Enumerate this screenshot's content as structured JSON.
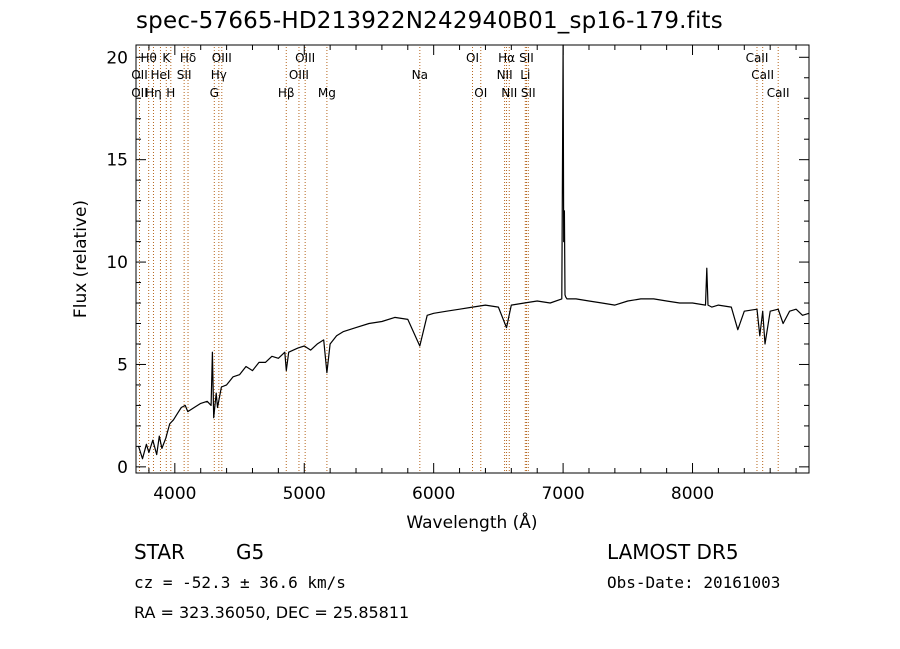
{
  "title": "spec-57665-HD213922N242940B01_sp16-179.fits",
  "info": {
    "object_class": "STAR",
    "subclass": "G5",
    "survey": "LAMOST DR5",
    "cz_line": "cz = -52.3 ± 36.6 km/s",
    "obs_date_line": "Obs-Date: 20161003",
    "coords_line": "RA = 323.36050, DEC =  25.85811"
  },
  "chart_data": {
    "type": "line",
    "title": "spec-57665-HD213922N242940B01_sp16-179.fits",
    "xlabel": "Wavelength (Å)",
    "ylabel": "Flux (relative)",
    "xlim": [
      3700,
      8900
    ],
    "ylim": [
      -0.3,
      20.6
    ],
    "x_ticks": [
      4000,
      5000,
      6000,
      7000,
      8000
    ],
    "y_ticks": [
      0,
      5,
      10,
      15,
      20
    ],
    "grid": false,
    "line_color": "#000000",
    "marker_color": "#b5651d",
    "series": [
      {
        "x": [
          3720,
          3750,
          3780,
          3800,
          3830,
          3860,
          3880,
          3900,
          3930,
          3960,
          3990,
          4020,
          4050,
          4080,
          4100,
          4150,
          4200,
          4250,
          4280,
          4290,
          4300,
          4320,
          4330,
          4360,
          4400,
          4450,
          4500,
          4550,
          4600,
          4650,
          4700,
          4750,
          4800,
          4850,
          4861,
          4880,
          4950,
          5000,
          5050,
          5100,
          5150,
          5175,
          5200,
          5250,
          5300,
          5400,
          5500,
          5600,
          5700,
          5800,
          5893,
          5950,
          6000,
          6100,
          6200,
          6300,
          6400,
          6500,
          6563,
          6600,
          6700,
          6800,
          6900,
          6990,
          7000,
          7005,
          7010,
          7015,
          7020,
          7030,
          7100,
          7200,
          7300,
          7400,
          7500,
          7600,
          7700,
          7800,
          7900,
          8000,
          8100,
          8110,
          8120,
          8150,
          8200,
          8300,
          8350,
          8400,
          8498,
          8520,
          8542,
          8560,
          8600,
          8662,
          8700,
          8750,
          8800,
          8850,
          8900
        ],
        "y": [
          1.0,
          0.4,
          1.1,
          0.7,
          1.3,
          0.6,
          1.5,
          0.9,
          1.4,
          2.1,
          2.3,
          2.6,
          2.9,
          3.0,
          2.7,
          2.9,
          3.1,
          3.2,
          3.0,
          5.6,
          2.4,
          3.6,
          2.9,
          3.9,
          4.0,
          4.4,
          4.5,
          4.9,
          4.7,
          5.1,
          5.1,
          5.4,
          5.3,
          5.6,
          4.7,
          5.6,
          5.8,
          5.9,
          5.7,
          6.0,
          6.2,
          4.6,
          6.0,
          6.4,
          6.6,
          6.8,
          7.0,
          7.1,
          7.3,
          7.2,
          5.9,
          7.4,
          7.5,
          7.6,
          7.7,
          7.8,
          7.9,
          7.8,
          6.8,
          7.9,
          8.0,
          8.1,
          8.0,
          8.2,
          20.6,
          11.0,
          12.5,
          8.4,
          8.3,
          8.2,
          8.2,
          8.1,
          8.0,
          7.9,
          8.1,
          8.2,
          8.2,
          8.1,
          8.0,
          8.0,
          7.9,
          9.7,
          7.9,
          7.8,
          7.9,
          7.8,
          6.7,
          7.6,
          7.7,
          6.4,
          7.6,
          6.0,
          7.6,
          7.7,
          7.0,
          7.6,
          7.7,
          7.4,
          7.5
        ]
      }
    ],
    "lines": [
      {
        "label": "Hθ",
        "x": 3798,
        "row": 0
      },
      {
        "label": "K",
        "x": 3934,
        "row": 0
      },
      {
        "label": "Hδ",
        "x": 4102,
        "row": 0
      },
      {
        "label": "OIII",
        "x": 4363,
        "row": 0
      },
      {
        "label": "OIII",
        "x": 5007,
        "row": 0
      },
      {
        "label": "OI",
        "x": 6300,
        "row": 0
      },
      {
        "label": "Hα",
        "x": 6563,
        "row": 0
      },
      {
        "label": "SII",
        "x": 6717,
        "row": 0
      },
      {
        "label": "CaII",
        "x": 8498,
        "row": 0
      },
      {
        "label": "OII",
        "x": 3727,
        "row": 1
      },
      {
        "label": "HeI",
        "x": 3889,
        "row": 1
      },
      {
        "label": "SII",
        "x": 4072,
        "row": 1
      },
      {
        "label": "Hγ",
        "x": 4340,
        "row": 1
      },
      {
        "label": "OIII",
        "x": 4959,
        "row": 1
      },
      {
        "label": "Na",
        "x": 5893,
        "row": 1
      },
      {
        "label": "NII",
        "x": 6548,
        "row": 1
      },
      {
        "label": "Li",
        "x": 6708,
        "row": 1
      },
      {
        "label": "CaII",
        "x": 8542,
        "row": 1
      },
      {
        "label": "OII",
        "x": 3727,
        "row": 2
      },
      {
        "label": "Hη",
        "x": 3835,
        "row": 2
      },
      {
        "label": "H",
        "x": 3969,
        "row": 2
      },
      {
        "label": "G",
        "x": 4305,
        "row": 2
      },
      {
        "label": "Hβ",
        "x": 4861,
        "row": 2
      },
      {
        "label": "Mg",
        "x": 5175,
        "row": 2
      },
      {
        "label": "OI",
        "x": 6364,
        "row": 2
      },
      {
        "label": "NII",
        "x": 6584,
        "row": 2
      },
      {
        "label": "SII",
        "x": 6731,
        "row": 2
      },
      {
        "label": "CaII",
        "x": 8662,
        "row": 2
      }
    ]
  }
}
